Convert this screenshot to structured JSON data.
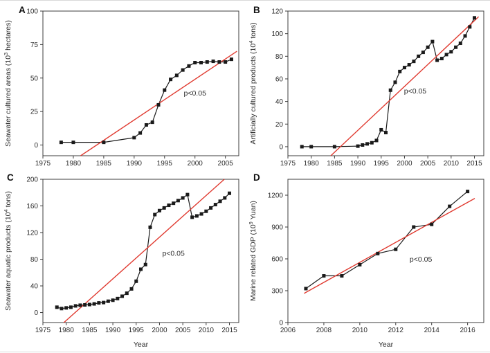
{
  "figure": {
    "panels": [
      "A",
      "B",
      "C",
      "D"
    ],
    "significance_label": "p<0.05",
    "colors": {
      "trend_line": "#e03a30",
      "data_series": "#1a1a1a",
      "axis": "#3c3c3c",
      "text": "#2b2b2b",
      "background": "#ffffff"
    }
  },
  "chart_data": [
    {
      "panel": "A",
      "type": "line",
      "ylabel": {
        "pre": "Seawater cultured areas (10",
        "sup": "3",
        "post": " hectares)"
      },
      "xlabel": "",
      "xlim": [
        1975,
        2007.2
      ],
      "ylim": [
        -8,
        100
      ],
      "xticks": [
        1975,
        1980,
        1985,
        1990,
        1995,
        2000,
        2005
      ],
      "yticks": [
        0,
        25,
        50,
        75,
        100
      ],
      "x": [
        1978,
        1980,
        1985,
        1990,
        1991,
        1992,
        1993,
        1994,
        1995,
        1996,
        1997,
        1998,
        1999,
        2000,
        2001,
        2002,
        2003,
        2004,
        2005,
        2006
      ],
      "y": [
        2,
        2,
        2,
        5.5,
        9,
        15,
        17,
        30,
        41,
        49,
        52,
        56,
        59,
        61.5,
        61.5,
        62,
        62.5,
        62,
        62,
        64
      ],
      "trend": {
        "x1": 1981.2,
        "y1": -8,
        "x2": 2006.9,
        "y2": 70
      },
      "annotation": {
        "text": "p<0.05",
        "x": 2000,
        "y": 37
      }
    },
    {
      "panel": "B",
      "type": "line",
      "ylabel": {
        "pre": "Artificially cultured products (10",
        "sup": "4",
        "post": " tons)"
      },
      "xlabel": "",
      "xlim": [
        1975,
        2017
      ],
      "ylim": [
        -8,
        120
      ],
      "xticks": [
        1975,
        1980,
        1985,
        1990,
        1995,
        2000,
        2005,
        2010,
        2015
      ],
      "yticks": [
        0,
        20,
        40,
        60,
        80,
        100,
        120
      ],
      "x": [
        1978,
        1980,
        1985,
        1990,
        1991,
        1992,
        1993,
        1994,
        1995,
        1996,
        1997,
        1998,
        1999,
        2000,
        2001,
        2002,
        2003,
        2004,
        2005,
        2006,
        2007,
        2008,
        2009,
        2010,
        2011,
        2012,
        2013,
        2014,
        2015
      ],
      "y": [
        0,
        0,
        0,
        0.5,
        1.5,
        2.5,
        3.5,
        5.5,
        15,
        12.5,
        50,
        57,
        66.5,
        70,
        72.5,
        75.5,
        80,
        83.5,
        88,
        93,
        76.5,
        78,
        81.5,
        84,
        88,
        91.5,
        98,
        106,
        114
      ],
      "trend": {
        "x1": 1984.2,
        "y1": -8,
        "x2": 2015.9,
        "y2": 115
      },
      "annotation": {
        "text": "p<0.05",
        "x": 2002.3,
        "y": 47
      }
    },
    {
      "panel": "C",
      "type": "line",
      "ylabel": {
        "pre": "Seawater aquatic products (10",
        "sup": "4",
        "post": " tons)"
      },
      "xlabel": "Year",
      "xlim": [
        1975,
        2017
      ],
      "ylim": [
        -15,
        200
      ],
      "xticks": [
        1975,
        1980,
        1985,
        1990,
        1995,
        2000,
        2005,
        2010,
        2015
      ],
      "yticks": [
        0,
        40,
        80,
        120,
        160,
        200
      ],
      "x": [
        1978,
        1979,
        1980,
        1981,
        1982,
        1983,
        1984,
        1985,
        1986,
        1987,
        1988,
        1989,
        1990,
        1991,
        1992,
        1993,
        1994,
        1995,
        1996,
        1997,
        1998,
        1999,
        2000,
        2001,
        2002,
        2003,
        2004,
        2005,
        2006,
        2007,
        2008,
        2009,
        2010,
        2011,
        2012,
        2013,
        2014,
        2015
      ],
      "y": [
        8,
        6,
        7,
        8,
        10,
        11,
        11.5,
        12,
        13,
        14.5,
        15,
        17,
        18.5,
        21,
        24.5,
        29,
        35.5,
        47,
        65,
        72,
        128,
        147,
        153,
        157,
        161,
        164,
        168,
        172,
        177,
        143,
        145,
        148,
        152,
        157,
        162,
        167,
        172,
        179
      ],
      "trend": {
        "x1": 1979.5,
        "y1": -15,
        "x2": 2013.9,
        "y2": 200
      },
      "annotation": {
        "text": "p<0.05",
        "x": 2003,
        "y": 85
      }
    },
    {
      "panel": "D",
      "type": "line",
      "ylabel": {
        "pre": "Marine related GDP (10",
        "sup": "9",
        "post": " Yuan)"
      },
      "xlabel": "Year",
      "xlim": [
        2006,
        2016.9
      ],
      "ylim": [
        0,
        1350
      ],
      "xticks": [
        2006,
        2008,
        2010,
        2012,
        2014,
        2016
      ],
      "yticks": [
        0,
        300,
        600,
        900,
        1200
      ],
      "x": [
        2007,
        2008,
        2009,
        2010,
        2011,
        2012,
        2013,
        2014,
        2015,
        2016
      ],
      "y": [
        320,
        440,
        440,
        545,
        650,
        690,
        900,
        925,
        1095,
        1235
      ],
      "trend": {
        "x1": 2006.9,
        "y1": 275,
        "x2": 2016.4,
        "y2": 1170
      },
      "annotation": {
        "text": "p<0.05",
        "x": 2013.4,
        "y": 575
      }
    }
  ]
}
